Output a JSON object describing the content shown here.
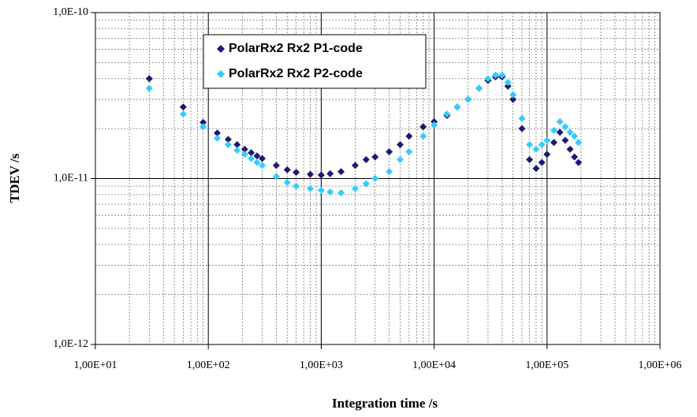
{
  "chart_data": {
    "type": "scatter",
    "xlabel": "Integration time /s",
    "ylabel": "TDEV /s",
    "log_x": true,
    "log_y": true,
    "grid": true,
    "minor_grid": true,
    "xlim": [
      10,
      1000000
    ],
    "ylim": [
      1e-12,
      1e-10
    ],
    "xticks": [
      {
        "value": 10,
        "label": "1,00E+01"
      },
      {
        "value": 100,
        "label": "1,00E+02"
      },
      {
        "value": 1000,
        "label": "1,00E+03"
      },
      {
        "value": 10000,
        "label": "1,00E+04"
      },
      {
        "value": 100000,
        "label": "1,00E+05"
      },
      {
        "value": 1000000,
        "label": "1,00E+06"
      }
    ],
    "yticks": [
      {
        "value": 1e-12,
        "label": "1,0E-12"
      },
      {
        "value": 1e-11,
        "label": "1,0E-11"
      },
      {
        "value": 1e-10,
        "label": "1,0E-10"
      }
    ],
    "x": [
      30,
      60,
      90,
      120,
      150,
      180,
      210,
      240,
      270,
      300,
      400,
      500,
      600,
      800,
      1000,
      1200,
      1500,
      2000,
      2500,
      3000,
      4000,
      5000,
      6000,
      8000,
      10000,
      13000,
      16000,
      20000,
      25000,
      30000,
      35000,
      40000,
      45000,
      50000,
      60000,
      70000,
      80000,
      90000,
      100000,
      115000,
      130000,
      145000,
      160000,
      175000,
      190000
    ],
    "series": [
      {
        "name": "PolarRx2 Rx2 P1-code",
        "color": "#1a1a72",
        "values": [
          4e-11,
          2.7e-11,
          2.18e-11,
          1.88e-11,
          1.72e-11,
          1.6e-11,
          1.5e-11,
          1.43e-11,
          1.37e-11,
          1.32e-11,
          1.2e-11,
          1.13e-11,
          1.09e-11,
          1.06e-11,
          1.05e-11,
          1.07e-11,
          1.1e-11,
          1.2e-11,
          1.3e-11,
          1.35e-11,
          1.45e-11,
          1.6e-11,
          1.8e-11,
          2.05e-11,
          2.2e-11,
          2.4e-11,
          2.7e-11,
          3e-11,
          3.5e-11,
          3.9e-11,
          4.1e-11,
          4.1e-11,
          3.6e-11,
          3e-11,
          2e-11,
          1.3e-11,
          1.15e-11,
          1.25e-11,
          1.4e-11,
          1.65e-11,
          1.9e-11,
          1.7e-11,
          1.5e-11,
          1.35e-11,
          1.25e-11
        ]
      },
      {
        "name": "PolarRx2 Rx2 P2-code",
        "color": "#33ccff",
        "values": [
          3.5e-11,
          2.45e-11,
          2.05e-11,
          1.75e-11,
          1.6e-11,
          1.48e-11,
          1.4e-11,
          1.32e-11,
          1.25e-11,
          1.2e-11,
          1.03e-11,
          9.5e-12,
          9e-12,
          8.7e-12,
          8.5e-12,
          8.3e-12,
          8.2e-12,
          8.7e-12,
          9.3e-12,
          1e-11,
          1.1e-11,
          1.3e-11,
          1.45e-11,
          1.8e-11,
          2.1e-11,
          2.45e-11,
          2.7e-11,
          3e-11,
          3.5e-11,
          4e-11,
          4.2e-11,
          4.2e-11,
          3.8e-11,
          3.2e-11,
          2.3e-11,
          1.6e-11,
          1.5e-11,
          1.6e-11,
          1.7e-11,
          1.95e-11,
          2.2e-11,
          2.05e-11,
          1.9e-11,
          1.8e-11,
          1.65e-11
        ]
      }
    ]
  }
}
